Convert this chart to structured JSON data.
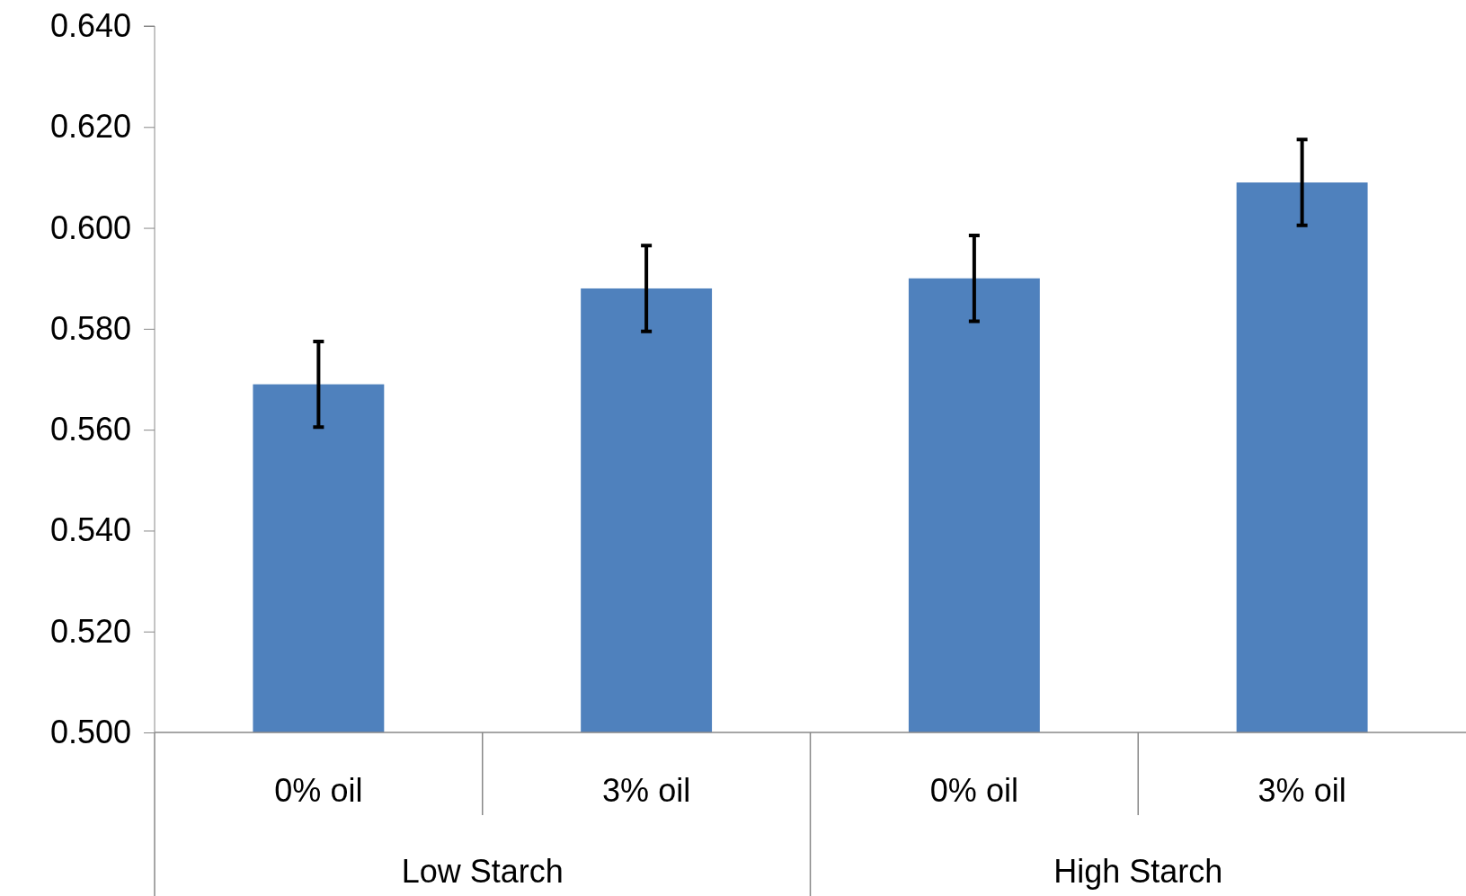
{
  "chart_data": {
    "type": "bar",
    "categories": [
      "0% oil",
      "3% oil",
      "0% oil",
      "3% oil"
    ],
    "values": [
      0.569,
      0.588,
      0.59,
      0.609
    ],
    "errors": [
      0.0085,
      0.0085,
      0.0085,
      0.0085
    ],
    "color": "#4f81bd",
    "ylim": [
      0.5,
      0.64
    ],
    "yticks": [
      {
        "value": 0.5,
        "label": "0.500"
      },
      {
        "value": 0.52,
        "label": "0.520"
      },
      {
        "value": 0.54,
        "label": "0.540"
      },
      {
        "value": 0.56,
        "label": "0.560"
      },
      {
        "value": 0.58,
        "label": "0.580"
      },
      {
        "value": 0.6,
        "label": "0.600"
      },
      {
        "value": 0.62,
        "label": "0.620"
      },
      {
        "value": 0.64,
        "label": "0.640"
      }
    ],
    "annotations": [
      "Low Starch",
      "High Starch"
    ],
    "grid": false
  }
}
